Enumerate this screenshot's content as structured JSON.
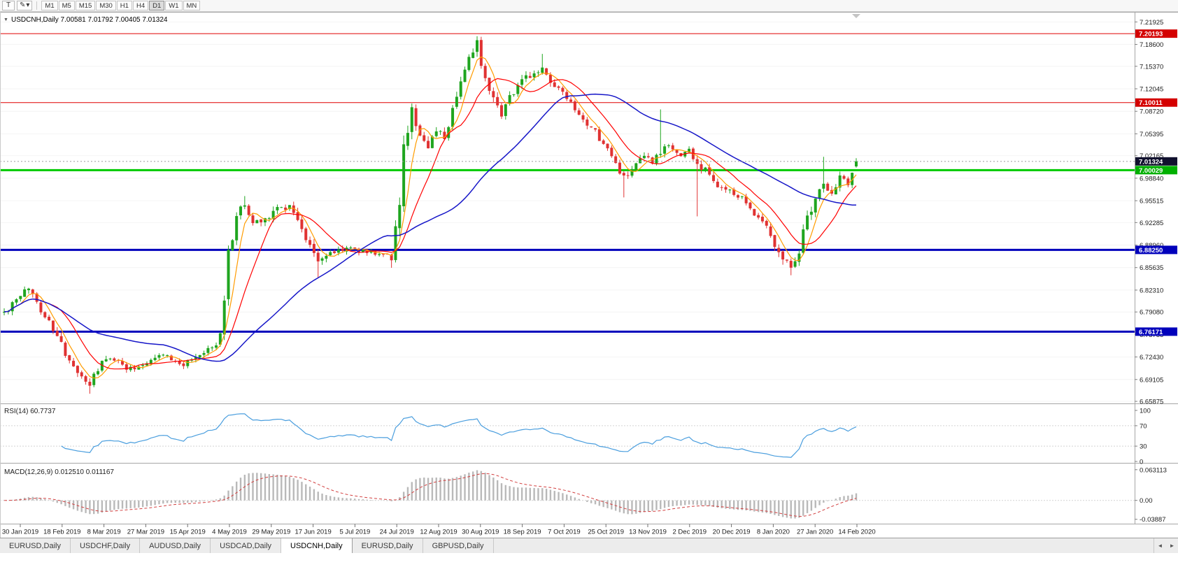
{
  "toolbar": {
    "text_tool": "T",
    "pencil_icon": "✎",
    "caret_icon": "▾",
    "timeframes": [
      "M1",
      "M5",
      "M15",
      "M30",
      "H1",
      "H4",
      "D1",
      "W1",
      "MN"
    ],
    "active_timeframe": "D1"
  },
  "chart": {
    "dropdown_icon": "▼",
    "title": "USDCNH,Daily",
    "ohlc_text": "7.00581 7.01792 7.00405 7.01324",
    "last_ohlc": {
      "open": 7.00581,
      "high": 7.01792,
      "low": 7.00405,
      "close": 7.01324
    },
    "price_range": {
      "max": 7.232,
      "min": 6.6557
    },
    "price_axis": [
      "7.21925",
      "7.18600",
      "7.15370",
      "7.12045",
      "7.08720",
      "7.05395",
      "7.02165",
      "6.98840",
      "6.95515",
      "6.92285",
      "6.88960",
      "6.85635",
      "6.82310",
      "6.79080",
      "6.75755",
      "6.72430",
      "6.69105",
      "6.65875"
    ],
    "levels": [
      {
        "value": 7.20193,
        "label": "7.20193",
        "color": "#e00000",
        "label_bg": "#d40000",
        "width": 1
      },
      {
        "value": 7.10011,
        "label": "7.10011",
        "color": "#e00000",
        "label_bg": "#d40000",
        "width": 1
      },
      {
        "value": 7.01324,
        "label": "7.01324",
        "color": "#9a9a9a",
        "label_bg": "#11112e",
        "width": 1,
        "dashed": true
      },
      {
        "value": 7.00029,
        "label": "7.00029",
        "color": "#00ca00",
        "label_bg": "#00b000",
        "width": 3
      },
      {
        "value": 6.8825,
        "label": "6.88250",
        "color": "#0000bb",
        "label_bg": "#0000bb",
        "width": 3
      },
      {
        "value": 6.76171,
        "label": "6.76171",
        "color": "#0000bb",
        "label_bg": "#0000bb",
        "width": 3
      }
    ],
    "colors": {
      "bull": "#1fa51f",
      "bear": "#e03232",
      "ma_fast": "#ff9c00",
      "ma_mid": "#ff0000",
      "ma_slow": "#1616c8",
      "rsi": "#4a9ede",
      "macd_hist": "#b9b9b9",
      "macd_signal": "#d23f3f"
    },
    "dates": [
      "30 Jan 2019",
      "18 Feb 2019",
      "8 Mar 2019",
      "27 Mar 2019",
      "15 Apr 2019",
      "4 May 2019",
      "29 May 2019",
      "17 Jun 2019",
      "5 Jul 2019",
      "24 Jul 2019",
      "12 Aug 2019",
      "30 Aug 2019",
      "18 Sep 2019",
      "7 Oct 2019",
      "25 Oct 2019",
      "13 Nov 2019",
      "2 Dec 2019",
      "20 Dec 2019",
      "8 Jan 2020",
      "27 Jan 2020",
      "14 Feb 2020"
    ],
    "candles": {
      "count": 210,
      "seed": 42,
      "anchors": [
        [
          0,
          6.79,
          0.008
        ],
        [
          4,
          6.812,
          0.01
        ],
        [
          6,
          6.828,
          0.009
        ],
        [
          9,
          6.795,
          0.008
        ],
        [
          11,
          6.776,
          0.008
        ],
        [
          14,
          6.742,
          0.008
        ],
        [
          17,
          6.706,
          0.008
        ],
        [
          21,
          6.684,
          0.008
        ],
        [
          24,
          6.716,
          0.007
        ],
        [
          27,
          6.722,
          0.007
        ],
        [
          31,
          6.706,
          0.007
        ],
        [
          35,
          6.718,
          0.007
        ],
        [
          39,
          6.73,
          0.007
        ],
        [
          43,
          6.712,
          0.007
        ],
        [
          47,
          6.72,
          0.007
        ],
        [
          50,
          6.735,
          0.006
        ],
        [
          52,
          6.74,
          0.006
        ],
        [
          53,
          6.762,
          0.012
        ],
        [
          55,
          6.872,
          0.018
        ],
        [
          57,
          6.936,
          0.013
        ],
        [
          59,
          6.948,
          0.011
        ],
        [
          61,
          6.922,
          0.009
        ],
        [
          64,
          6.93,
          0.009
        ],
        [
          67,
          6.944,
          0.009
        ],
        [
          70,
          6.948,
          0.009
        ],
        [
          72,
          6.93,
          0.009
        ],
        [
          74,
          6.896,
          0.01
        ],
        [
          77,
          6.868,
          0.01
        ],
        [
          80,
          6.878,
          0.008
        ],
        [
          84,
          6.886,
          0.007
        ],
        [
          88,
          6.88,
          0.006
        ],
        [
          92,
          6.878,
          0.006
        ],
        [
          95,
          6.872,
          0.008
        ],
        [
          97,
          6.945,
          0.02
        ],
        [
          98,
          7.042,
          0.022
        ],
        [
          100,
          7.086,
          0.015
        ],
        [
          102,
          7.056,
          0.012
        ],
        [
          104,
          7.026,
          0.012
        ],
        [
          106,
          7.06,
          0.011
        ],
        [
          108,
          7.046,
          0.01
        ],
        [
          110,
          7.092,
          0.012
        ],
        [
          112,
          7.136,
          0.012
        ],
        [
          114,
          7.162,
          0.012
        ],
        [
          116,
          7.186,
          0.012
        ],
        [
          118,
          7.136,
          0.011
        ],
        [
          120,
          7.112,
          0.01
        ],
        [
          122,
          7.086,
          0.011
        ],
        [
          124,
          7.11,
          0.009
        ],
        [
          126,
          7.126,
          0.009
        ],
        [
          129,
          7.14,
          0.008
        ],
        [
          132,
          7.15,
          0.009
        ],
        [
          134,
          7.128,
          0.008
        ],
        [
          136,
          7.12,
          0.008
        ],
        [
          139,
          7.096,
          0.008
        ],
        [
          142,
          7.07,
          0.008
        ],
        [
          145,
          7.056,
          0.008
        ],
        [
          147,
          7.04,
          0.008
        ],
        [
          150,
          7.01,
          0.008
        ],
        [
          152,
          6.988,
          0.008
        ],
        [
          154,
          7.0,
          0.007
        ],
        [
          157,
          7.02,
          0.007
        ],
        [
          159,
          7.01,
          0.007
        ],
        [
          161,
          7.026,
          0.01
        ],
        [
          163,
          7.036,
          0.007
        ],
        [
          166,
          7.022,
          0.007
        ],
        [
          168,
          7.03,
          0.007
        ],
        [
          170,
          7.008,
          0.01
        ],
        [
          172,
          7.0,
          0.007
        ],
        [
          175,
          6.978,
          0.007
        ],
        [
          178,
          6.968,
          0.007
        ],
        [
          181,
          6.958,
          0.007
        ],
        [
          184,
          6.938,
          0.008
        ],
        [
          187,
          6.92,
          0.009
        ],
        [
          190,
          6.878,
          0.011
        ],
        [
          193,
          6.862,
          0.01
        ],
        [
          195,
          6.882,
          0.01
        ],
        [
          197,
          6.93,
          0.012
        ],
        [
          199,
          6.962,
          0.01
        ],
        [
          201,
          6.978,
          0.009
        ],
        [
          203,
          6.968,
          0.008
        ],
        [
          205,
          6.988,
          0.008
        ],
        [
          207,
          6.982,
          0.007
        ],
        [
          209,
          7.008,
          0.007
        ]
      ],
      "wicks": [
        {
          "i": 21,
          "low": 6.67
        },
        {
          "i": 59,
          "high": 6.962
        },
        {
          "i": 77,
          "low": 6.842
        },
        {
          "i": 95,
          "low": 6.856
        },
        {
          "i": 116,
          "high": 7.196
        },
        {
          "i": 132,
          "high": 7.172
        },
        {
          "i": 152,
          "low": 6.96
        },
        {
          "i": 161,
          "high": 7.09
        },
        {
          "i": 170,
          "low": 6.932
        },
        {
          "i": 193,
          "low": 6.845
        },
        {
          "i": 201,
          "high": 7.02
        }
      ]
    }
  },
  "rsi": {
    "label": "RSI(14)",
    "value": "60.7737",
    "ticks": [
      "100",
      "70",
      "30",
      "0"
    ],
    "levels": [
      70,
      30
    ]
  },
  "macd": {
    "label": "MACD(12,26,9)",
    "values": "0.012510 0.011167",
    "ticks": [
      "0.063113",
      "0.00",
      "-0.03887"
    ]
  },
  "tabs": {
    "items": [
      "EURUSD,Daily",
      "USDCHF,Daily",
      "AUDUSD,Daily",
      "USDCAD,Daily",
      "USDCNH,Daily",
      "EURUSD,Daily",
      "GBPUSD,Daily"
    ],
    "active_index": 4,
    "left_arrow": "◄",
    "right_arrow": "►"
  }
}
